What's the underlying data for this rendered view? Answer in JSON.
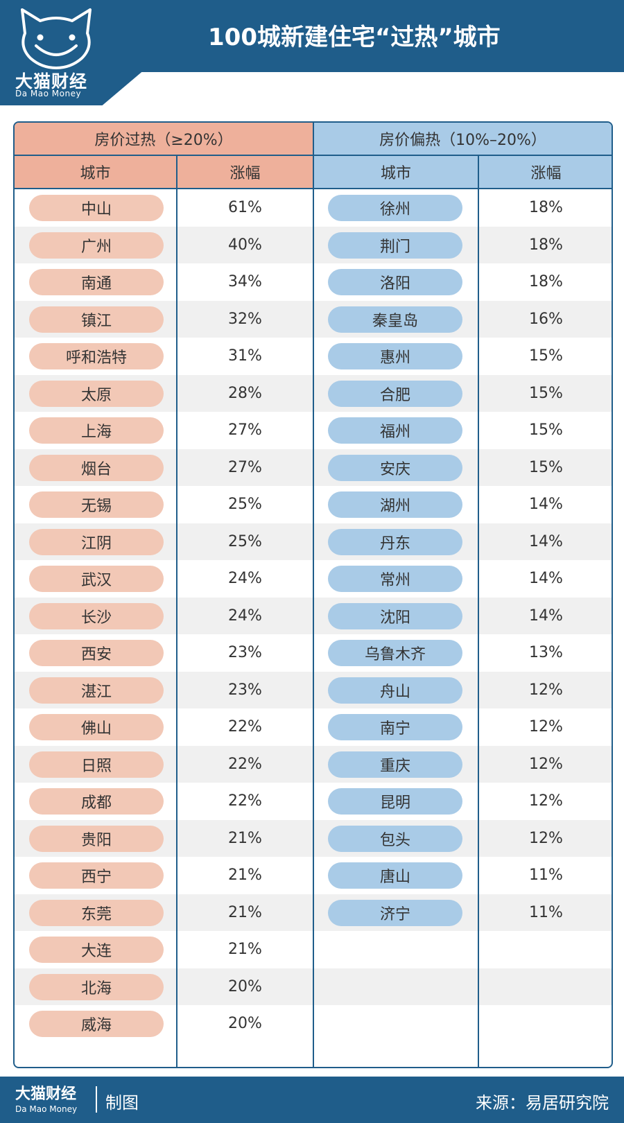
{
  "header": {
    "title": "100城新建住宅“过热”城市",
    "logo_cn": "大猫财经",
    "logo_en": "Da Mao Money"
  },
  "hot": {
    "title": "房价过热（≥20%）",
    "col_city": "城市",
    "col_rise": "涨幅",
    "rows": [
      {
        "city": "中山",
        "rise": "61%"
      },
      {
        "city": "广州",
        "rise": "40%"
      },
      {
        "city": "南通",
        "rise": "34%"
      },
      {
        "city": "镇江",
        "rise": "32%"
      },
      {
        "city": "呼和浩特",
        "rise": "31%"
      },
      {
        "city": "太原",
        "rise": "28%"
      },
      {
        "city": "上海",
        "rise": "27%"
      },
      {
        "city": "烟台",
        "rise": "27%"
      },
      {
        "city": "无锡",
        "rise": "25%"
      },
      {
        "city": "江阴",
        "rise": "25%"
      },
      {
        "city": "武汉",
        "rise": "24%"
      },
      {
        "city": "长沙",
        "rise": "24%"
      },
      {
        "city": "西安",
        "rise": "23%"
      },
      {
        "city": "湛江",
        "rise": "23%"
      },
      {
        "city": "佛山",
        "rise": "22%"
      },
      {
        "city": "日照",
        "rise": "22%"
      },
      {
        "city": "成都",
        "rise": "22%"
      },
      {
        "city": "贵阳",
        "rise": "21%"
      },
      {
        "city": "西宁",
        "rise": "21%"
      },
      {
        "city": "东莞",
        "rise": "21%"
      },
      {
        "city": "大连",
        "rise": "21%"
      },
      {
        "city": "北海",
        "rise": "20%"
      },
      {
        "city": "威海",
        "rise": "20%"
      }
    ]
  },
  "warm": {
    "title": "房价偏热（10%–20%）",
    "col_city": "城市",
    "col_rise": "涨幅",
    "rows": [
      {
        "city": "徐州",
        "rise": "18%"
      },
      {
        "city": "荆门",
        "rise": "18%"
      },
      {
        "city": "洛阳",
        "rise": "18%"
      },
      {
        "city": "秦皇岛",
        "rise": "16%"
      },
      {
        "city": "惠州",
        "rise": "15%"
      },
      {
        "city": "合肥",
        "rise": "15%"
      },
      {
        "city": "福州",
        "rise": "15%"
      },
      {
        "city": "安庆",
        "rise": "15%"
      },
      {
        "city": "湖州",
        "rise": "14%"
      },
      {
        "city": "丹东",
        "rise": "14%"
      },
      {
        "city": "常州",
        "rise": "14%"
      },
      {
        "city": "沈阳",
        "rise": "14%"
      },
      {
        "city": "乌鲁木齐",
        "rise": "13%"
      },
      {
        "city": "舟山",
        "rise": "12%"
      },
      {
        "city": "南宁",
        "rise": "12%"
      },
      {
        "city": "重庆",
        "rise": "12%"
      },
      {
        "city": "昆明",
        "rise": "12%"
      },
      {
        "city": "包头",
        "rise": "12%"
      },
      {
        "city": "唐山",
        "rise": "11%"
      },
      {
        "city": "济宁",
        "rise": "11%"
      }
    ]
  },
  "footer": {
    "brand_cn": "大猫财经",
    "brand_en": "Da Mao Money",
    "made": "制图",
    "source": "来源：易居研究院"
  },
  "colors": {
    "brand_blue": "#1f5d8a",
    "hot_header": "#eeb09b",
    "hot_pill": "#f2c8b6",
    "warm_header": "#a9cbe7"
  }
}
